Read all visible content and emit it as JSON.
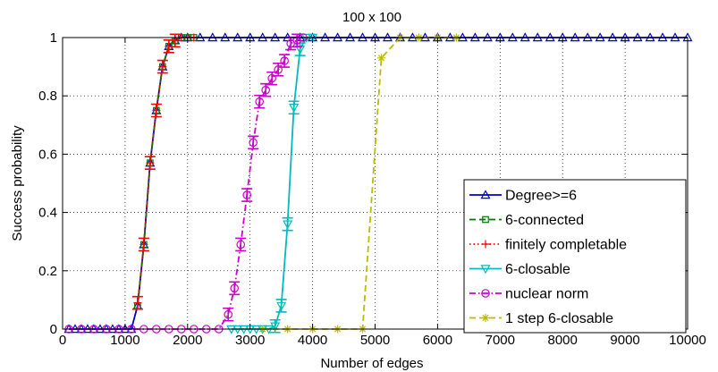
{
  "chart_data": {
    "type": "line",
    "title": "100 x 100",
    "xlabel": "Number of edges",
    "ylabel": "Success probability",
    "xlim": [
      0,
      10000
    ],
    "ylim": [
      0,
      1
    ],
    "xticks": [
      0,
      1000,
      2000,
      3000,
      4000,
      5000,
      6000,
      7000,
      8000,
      9000,
      10000
    ],
    "yticks": [
      0,
      0.2,
      0.4,
      0.6,
      0.8,
      1
    ],
    "xtick_labels": [
      "0",
      "1000",
      "2000",
      "3000",
      "4000",
      "5000",
      "6000",
      "7000",
      "8000",
      "9000",
      "10000"
    ],
    "ytick_labels": [
      "0",
      "0.2",
      "0.4",
      "0.6",
      "0.8",
      "1"
    ],
    "grid": true,
    "legend_position": "bottom-right",
    "series": [
      {
        "name": "Degree>=6",
        "color": "#0000cc",
        "dash": "solid",
        "marker": "triangle-up",
        "errorbars": false,
        "x": [
          100,
          200,
          300,
          400,
          500,
          600,
          700,
          800,
          900,
          1000,
          1100,
          1200,
          1300,
          1400,
          1500,
          1600,
          1700,
          1800,
          1900,
          2000,
          2200,
          2400,
          2600,
          2800,
          3000,
          3200,
          3400,
          3600,
          3800,
          4000,
          4200,
          4400,
          4600,
          4800,
          5000,
          5200,
          5400,
          5600,
          5800,
          6000,
          6200,
          6400,
          6600,
          6800,
          7000,
          7200,
          7400,
          7600,
          7800,
          8000,
          8200,
          8400,
          8600,
          8800,
          9000,
          9200,
          9400,
          9600,
          9800,
          10000
        ],
        "y": [
          0,
          0,
          0,
          0,
          0,
          0,
          0,
          0,
          0,
          0,
          0,
          0.08,
          0.29,
          0.57,
          0.75,
          0.9,
          0.97,
          0.99,
          1,
          1,
          1,
          1,
          1,
          1,
          1,
          1,
          1,
          1,
          1,
          1,
          1,
          1,
          1,
          1,
          1,
          1,
          1,
          1,
          1,
          1,
          1,
          1,
          1,
          1,
          1,
          1,
          1,
          1,
          1,
          1,
          1,
          1,
          1,
          1,
          1,
          1,
          1,
          1,
          1,
          1
        ]
      },
      {
        "name": "6-connected",
        "color": "#007700",
        "dash": "dashed",
        "marker": "square",
        "errorbars": false,
        "x": [
          1200,
          1300,
          1400,
          1500,
          1600,
          1700,
          1800,
          1900,
          2000,
          2100
        ],
        "y": [
          0.08,
          0.29,
          0.57,
          0.75,
          0.9,
          0.97,
          0.99,
          1,
          1,
          1
        ]
      },
      {
        "name": "finitely completable",
        "color": "#ff0000",
        "dash": "dotted",
        "marker": "plus",
        "errorbars": true,
        "x": [
          1200,
          1300,
          1400,
          1500,
          1600,
          1700,
          1800,
          1900,
          2000,
          2100
        ],
        "y": [
          0.09,
          0.29,
          0.57,
          0.75,
          0.9,
          0.97,
          0.99,
          1,
          1,
          1
        ]
      },
      {
        "name": "6-closable",
        "color": "#00bbbb",
        "dash": "solid",
        "marker": "triangle-down",
        "errorbars": true,
        "x": [
          2700,
          2800,
          2900,
          3000,
          3100,
          3200,
          3300,
          3400,
          3500,
          3600,
          3700,
          3800,
          3900,
          4000
        ],
        "y": [
          0,
          0,
          0,
          0,
          0,
          0,
          0,
          0.01,
          0.08,
          0.36,
          0.76,
          0.96,
          1,
          1
        ]
      },
      {
        "name": "nuclear norm",
        "color": "#cc00cc",
        "dash": "dashdot",
        "marker": "circle",
        "errorbars": true,
        "x": [
          100,
          300,
          500,
          700,
          900,
          1100,
          1300,
          1500,
          1700,
          1900,
          2100,
          2300,
          2500,
          2650,
          2750,
          2850,
          2950,
          3050,
          3150,
          3250,
          3350,
          3450,
          3550,
          3650,
          3750,
          3850
        ],
        "y": [
          0,
          0,
          0,
          0,
          0,
          0,
          0,
          0,
          0,
          0,
          0,
          0,
          0,
          0.05,
          0.14,
          0.29,
          0.46,
          0.64,
          0.78,
          0.82,
          0.86,
          0.89,
          0.92,
          0.98,
          0.99,
          1
        ]
      },
      {
        "name": "1 step 6-closable",
        "color": "#bbbb00",
        "dash": "dashed",
        "marker": "star",
        "errorbars": false,
        "x": [
          3200,
          3600,
          4000,
          4400,
          4800,
          5100,
          5400,
          5700,
          6000,
          6300
        ],
        "y": [
          0,
          0,
          0,
          0,
          0,
          0.93,
          1,
          1,
          1,
          1
        ]
      }
    ]
  }
}
